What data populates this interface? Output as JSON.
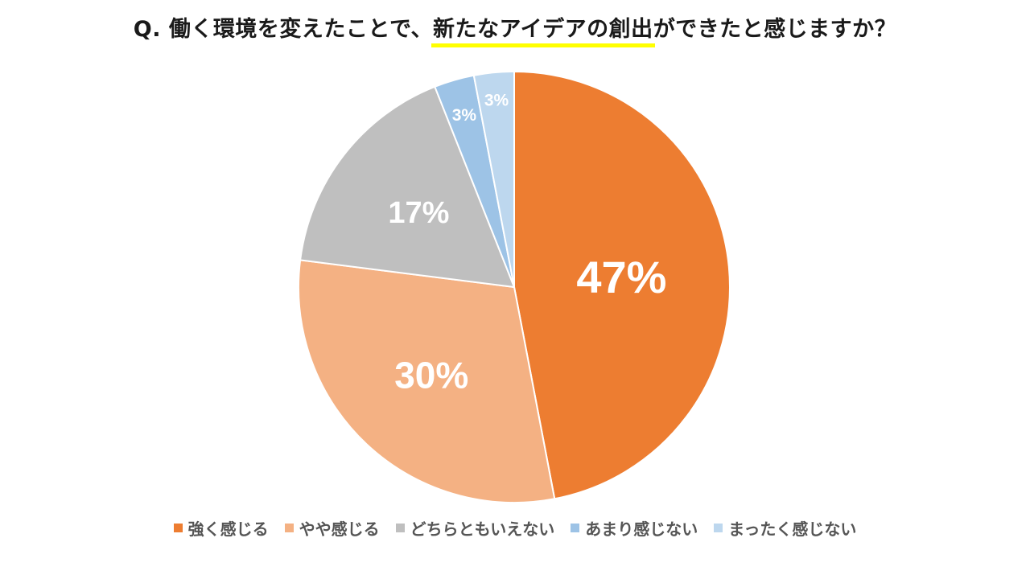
{
  "title": {
    "before": "Q. 働く環境を変えたことで、",
    "highlight": "新たなアイデアの創出",
    "after": "ができたと感じますか？"
  },
  "chart_data": {
    "type": "pie",
    "title": "Q. 働く環境を変えたことで、新たなアイデアの創出ができたと感じますか？",
    "slices": [
      {
        "name": "強く感じる",
        "value": 47,
        "label": "47%",
        "color": "#ED7D31"
      },
      {
        "name": "やや感じる",
        "value": 30,
        "label": "30%",
        "color": "#F4B183"
      },
      {
        "name": "どちらともいえない",
        "value": 17,
        "label": "17%",
        "color": "#BFBFBF"
      },
      {
        "name": "あまり感じない",
        "value": 3,
        "label": "3%",
        "color": "#9DC3E6"
      },
      {
        "name": "まったく感じない",
        "value": 3,
        "label": "3%",
        "color": "#BDD7EE"
      }
    ],
    "start_angle": "12 o'clock",
    "direction": "clockwise",
    "legend_position": "bottom"
  }
}
